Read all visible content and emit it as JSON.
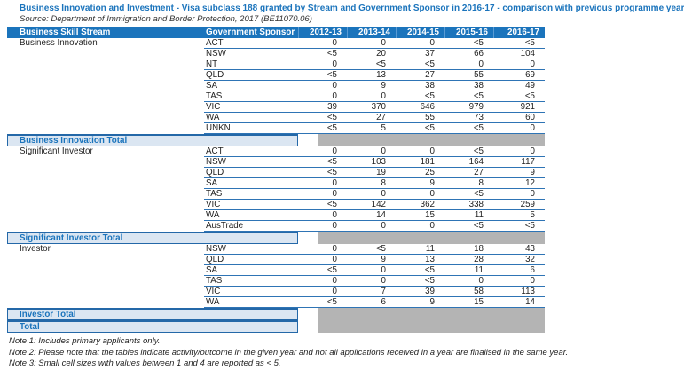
{
  "title": "Business Innovation and Investment - Visa subclass 188 granted by Stream and Government Sponsor in 2016-17 - comparison with previous programme year",
  "source": "Source: Department of Immigration and Border Protection, 2017 (BE11070.06)",
  "columns": [
    "Business Skill Stream",
    "Government Sponsor",
    "2012-13",
    "2013-14",
    "2014-15",
    "2015-16",
    "2016-17"
  ],
  "groups": [
    {
      "stream": "Business Innovation",
      "rows": [
        {
          "sponsor": "ACT",
          "values": [
            "0",
            "0",
            "0",
            "<5",
            "<5"
          ]
        },
        {
          "sponsor": "NSW",
          "values": [
            "<5",
            "20",
            "37",
            "66",
            "104"
          ]
        },
        {
          "sponsor": "NT",
          "values": [
            "0",
            "<5",
            "<5",
            "0",
            "0"
          ]
        },
        {
          "sponsor": "QLD",
          "values": [
            "<5",
            "13",
            "27",
            "55",
            "69"
          ]
        },
        {
          "sponsor": "SA",
          "values": [
            "0",
            "9",
            "38",
            "38",
            "49"
          ]
        },
        {
          "sponsor": "TAS",
          "values": [
            "0",
            "0",
            "<5",
            "<5",
            "<5"
          ]
        },
        {
          "sponsor": "VIC",
          "values": [
            "39",
            "370",
            "646",
            "979",
            "921"
          ]
        },
        {
          "sponsor": "WA",
          "values": [
            "<5",
            "27",
            "55",
            "73",
            "60"
          ]
        },
        {
          "sponsor": "UNKN",
          "values": [
            "<5",
            "5",
            "<5",
            "<5",
            "0"
          ]
        }
      ],
      "total_label": "Business Innovation Total"
    },
    {
      "stream": "Significant Investor",
      "rows": [
        {
          "sponsor": "ACT",
          "values": [
            "0",
            "0",
            "0",
            "<5",
            "0"
          ]
        },
        {
          "sponsor": "NSW",
          "values": [
            "<5",
            "103",
            "181",
            "164",
            "117"
          ]
        },
        {
          "sponsor": "QLD",
          "values": [
            "<5",
            "19",
            "25",
            "27",
            "9"
          ]
        },
        {
          "sponsor": "SA",
          "values": [
            "0",
            "8",
            "9",
            "8",
            "12"
          ]
        },
        {
          "sponsor": "TAS",
          "values": [
            "0",
            "0",
            "0",
            "<5",
            "0"
          ]
        },
        {
          "sponsor": "VIC",
          "values": [
            "<5",
            "142",
            "362",
            "338",
            "259"
          ]
        },
        {
          "sponsor": "WA",
          "values": [
            "0",
            "14",
            "15",
            "11",
            "5"
          ]
        },
        {
          "sponsor": "AusTrade",
          "values": [
            "0",
            "0",
            "0",
            "<5",
            "<5"
          ]
        }
      ],
      "total_label": "Significant Investor Total"
    },
    {
      "stream": "Investor",
      "rows": [
        {
          "sponsor": "NSW",
          "values": [
            "0",
            "<5",
            "11",
            "18",
            "43"
          ]
        },
        {
          "sponsor": "QLD",
          "values": [
            "0",
            "9",
            "13",
            "28",
            "32"
          ]
        },
        {
          "sponsor": "SA",
          "values": [
            "<5",
            "0",
            "<5",
            "11",
            "6"
          ]
        },
        {
          "sponsor": "TAS",
          "values": [
            "0",
            "0",
            "<5",
            "0",
            "0"
          ]
        },
        {
          "sponsor": "VIC",
          "values": [
            "0",
            "7",
            "39",
            "58",
            "113"
          ]
        },
        {
          "sponsor": "WA",
          "values": [
            "<5",
            "6",
            "9",
            "15",
            "14"
          ]
        }
      ],
      "total_label": "Investor Total"
    }
  ],
  "grand_total_label": "Total",
  "notes": [
    "Note 1: Includes primary applicants only.",
    "Note 2: Please note that the tables indicate activity/outcome in the given year and not all applications received in a year are finalised in the same year.",
    "Note 3: Small cell sizes with values between 1 and 4 are reported as < 5."
  ],
  "colors": {
    "header_blue": "#1b74bc",
    "total_band_blue": "#dbe6f2",
    "total_fill_gray": "#b4b4b4",
    "row_border_blue": "#2e74b5"
  }
}
